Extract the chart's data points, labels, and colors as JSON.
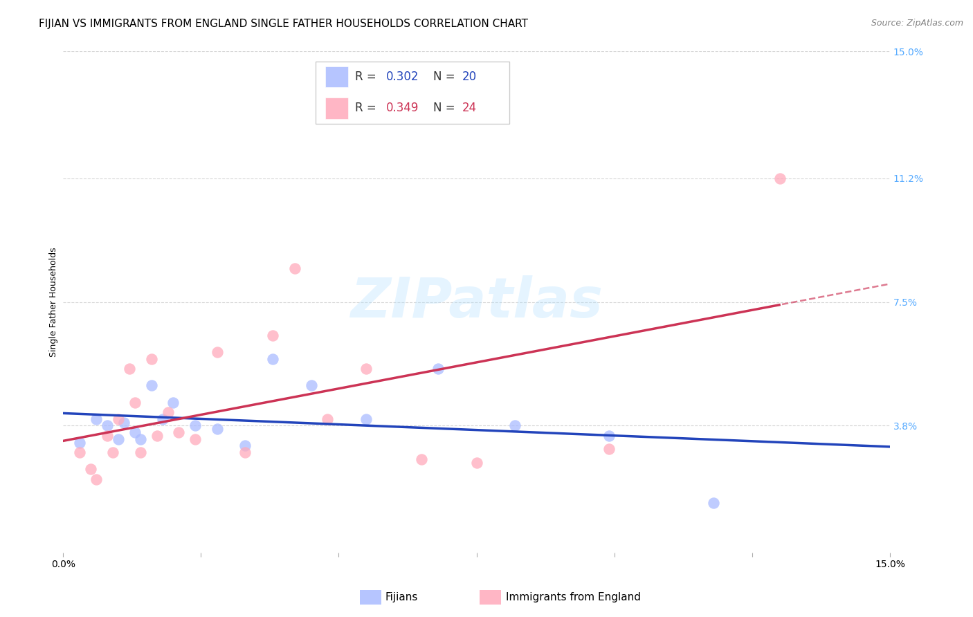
{
  "title": "FIJIAN VS IMMIGRANTS FROM ENGLAND SINGLE FATHER HOUSEHOLDS CORRELATION CHART",
  "source": "Source: ZipAtlas.com",
  "ylabel": "Single Father Households",
  "xlim": [
    0,
    0.15
  ],
  "ylim": [
    0,
    0.15
  ],
  "ytick_labels_right": [
    "15.0%",
    "11.2%",
    "7.5%",
    "3.8%"
  ],
  "ytick_positions_right": [
    0.15,
    0.112,
    0.075,
    0.038
  ],
  "fijian_color": "#aabbff",
  "england_color": "#ffaabb",
  "fijian_line_color": "#2244bb",
  "england_line_color": "#cc3355",
  "R_fijian": 0.302,
  "N_fijian": 20,
  "R_england": 0.349,
  "N_england": 24,
  "fijian_x": [
    0.003,
    0.006,
    0.008,
    0.01,
    0.011,
    0.013,
    0.014,
    0.016,
    0.018,
    0.02,
    0.024,
    0.028,
    0.033,
    0.038,
    0.045,
    0.055,
    0.068,
    0.082,
    0.099,
    0.118
  ],
  "fijian_y": [
    0.033,
    0.04,
    0.038,
    0.034,
    0.039,
    0.036,
    0.034,
    0.05,
    0.04,
    0.045,
    0.038,
    0.037,
    0.032,
    0.058,
    0.05,
    0.04,
    0.055,
    0.038,
    0.035,
    0.015
  ],
  "england_x": [
    0.003,
    0.005,
    0.006,
    0.008,
    0.009,
    0.01,
    0.012,
    0.013,
    0.014,
    0.016,
    0.017,
    0.019,
    0.021,
    0.024,
    0.028,
    0.033,
    0.038,
    0.042,
    0.048,
    0.055,
    0.065,
    0.075,
    0.099,
    0.13
  ],
  "england_y": [
    0.03,
    0.025,
    0.022,
    0.035,
    0.03,
    0.04,
    0.055,
    0.045,
    0.03,
    0.058,
    0.035,
    0.042,
    0.036,
    0.034,
    0.06,
    0.03,
    0.065,
    0.085,
    0.04,
    0.055,
    0.028,
    0.027,
    0.031,
    0.112
  ],
  "watermark_text": "ZIPatlas",
  "background_color": "#ffffff",
  "grid_color": "#cccccc",
  "title_fontsize": 11,
  "axis_label_fontsize": 9,
  "tick_fontsize": 10,
  "legend_fontsize": 12
}
